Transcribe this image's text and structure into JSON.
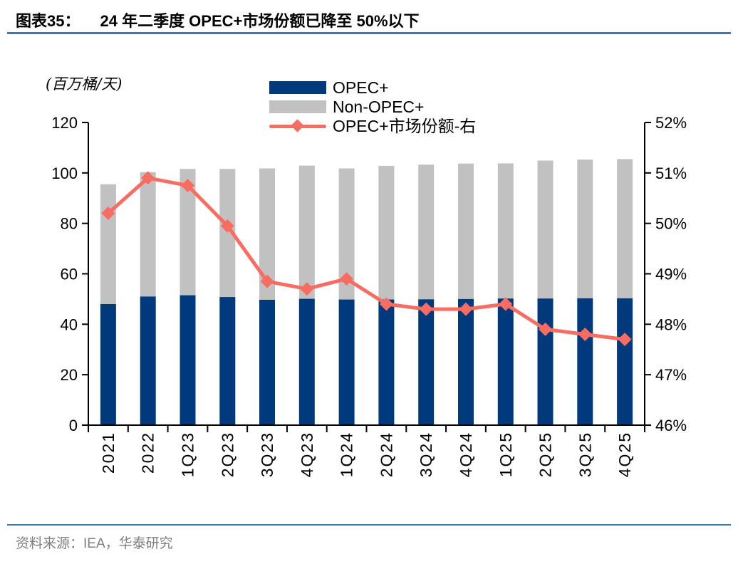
{
  "header": {
    "tag": "图表35：",
    "title": "24 年二季度 OPEC+市场份额已降至 50%以下"
  },
  "axis_unit": "(百万桶/天)",
  "legend": [
    {
      "label": "OPEC+",
      "type": "bar",
      "color": "#003A7C"
    },
    {
      "label": "Non-OPEC+",
      "type": "bar",
      "color": "#C1C1C1"
    },
    {
      "label": "OPEC+市场份额-右",
      "type": "line",
      "color": "#F96C62"
    }
  ],
  "footer": {
    "source": "资料来源：IEA，华泰研究"
  },
  "colors": {
    "opec_bar": "#003A7C",
    "non_opec_bar": "#C1C1C1",
    "share_line": "#F96C62",
    "axis": "#000000",
    "rule_blue": "#4575AC",
    "source_text": "#7f7f7f"
  },
  "chart_data": {
    "type": "bar",
    "subtype": "stacked-bars-with-line",
    "title": "24 年二季度 OPEC+市场份额已降至 50%以下",
    "categories": [
      "2021",
      "2022",
      "1Q23",
      "2Q23",
      "3Q23",
      "4Q23",
      "1Q24",
      "2Q24",
      "3Q24",
      "4Q24",
      "1Q25",
      "2Q25",
      "3Q25",
      "4Q25"
    ],
    "series": [
      {
        "name": "OPEC+",
        "type": "bar",
        "stack": "total",
        "axis": "left",
        "color": "#003A7C",
        "values": [
          48.0,
          51.0,
          51.5,
          50.8,
          49.7,
          50.1,
          49.8,
          49.8,
          49.9,
          50.0,
          50.2,
          50.2,
          50.3,
          50.3
        ]
      },
      {
        "name": "Non-OPEC+",
        "type": "bar",
        "stack": "total",
        "axis": "left",
        "color": "#C1C1C1",
        "values": [
          47.5,
          49.3,
          50.1,
          50.8,
          52.1,
          52.8,
          52.0,
          53.0,
          53.4,
          53.7,
          53.6,
          54.7,
          55.0,
          55.2
        ]
      },
      {
        "name": "OPEC+市场份额-右",
        "type": "line",
        "axis": "right",
        "color": "#F96C62",
        "values": [
          50.2,
          50.9,
          50.75,
          49.95,
          48.85,
          48.7,
          48.9,
          48.4,
          48.3,
          48.3,
          48.4,
          47.9,
          47.8,
          47.7
        ]
      }
    ],
    "left_axis": {
      "label": "(百万桶/天)",
      "min": 0,
      "max": 120,
      "step": 20,
      "tick_labels": [
        "0",
        "20",
        "40",
        "60",
        "80",
        "100",
        "120"
      ]
    },
    "right_axis": {
      "label": "OPEC+市场份额",
      "min": 46,
      "max": 52,
      "step": 1,
      "tick_labels": [
        "46%",
        "47%",
        "48%",
        "49%",
        "50%",
        "51%",
        "52%"
      ]
    },
    "grid": false,
    "legend_position": "top-center",
    "xlabel": "",
    "ylabel": "百万桶/天"
  }
}
